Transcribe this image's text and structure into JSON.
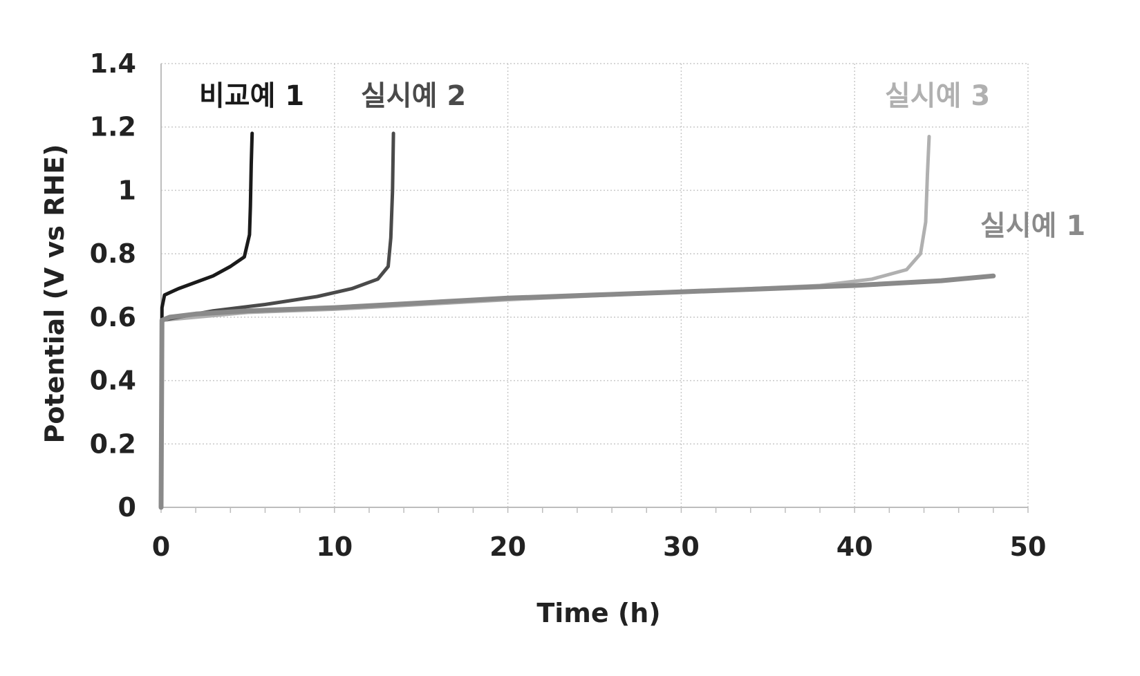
{
  "chart_data": {
    "type": "line",
    "title": "",
    "xlabel": "Time (h)",
    "ylabel": "Potential (V vs RHE)",
    "xlim": [
      0,
      50
    ],
    "ylim": [
      0,
      1.4
    ],
    "xticks": [
      0,
      10,
      20,
      30,
      40,
      50
    ],
    "yticks": [
      0,
      0.2,
      0.4,
      0.6,
      0.8,
      1.0,
      1.2,
      1.4
    ],
    "xtick_labels": [
      "0",
      "10",
      "20",
      "30",
      "40",
      "50"
    ],
    "ytick_labels": [
      "0",
      "0.2",
      "0.4",
      "0.6",
      "0.8",
      "1",
      "1.2",
      "1.4"
    ],
    "grid": true,
    "legend": "none",
    "series": [
      {
        "name": "실시예 1",
        "color": "#8a8a8a",
        "x": [
          0,
          0.05,
          0.5,
          2,
          5,
          10,
          15,
          20,
          25,
          30,
          35,
          40,
          45,
          48
        ],
        "y": [
          0.0,
          0.59,
          0.6,
          0.61,
          0.62,
          0.63,
          0.645,
          0.66,
          0.67,
          0.68,
          0.69,
          0.7,
          0.715,
          0.73
        ]
      },
      {
        "name": "비교예 1",
        "color": "#1a1a1a",
        "x": [
          0,
          0.05,
          0.2,
          1,
          2,
          3,
          4,
          4.8,
          5.1,
          5.15,
          5.2,
          5.25
        ],
        "y": [
          0.0,
          0.63,
          0.67,
          0.69,
          0.71,
          0.73,
          0.76,
          0.79,
          0.86,
          0.95,
          1.08,
          1.18
        ]
      },
      {
        "name": "실시예 2",
        "color": "#4a4a4a",
        "x": [
          0,
          0.05,
          1,
          3,
          6,
          9,
          11,
          12.5,
          13.1,
          13.25,
          13.35,
          13.4
        ],
        "y": [
          0.0,
          0.59,
          0.6,
          0.62,
          0.64,
          0.665,
          0.69,
          0.72,
          0.76,
          0.85,
          1.0,
          1.18
        ]
      },
      {
        "name": "실시예 3",
        "color": "#b0b0b0",
        "x": [
          0,
          0.05,
          5,
          10,
          20,
          30,
          38,
          41,
          43,
          43.8,
          44.1,
          44.2,
          44.3
        ],
        "y": [
          0.0,
          0.59,
          0.615,
          0.625,
          0.655,
          0.68,
          0.7,
          0.72,
          0.75,
          0.8,
          0.9,
          1.05,
          1.17
        ]
      }
    ]
  },
  "labels": {
    "comp1": "비교예 1",
    "ex2": "실시예 2",
    "ex3": "실시예 3",
    "ex1": "실시예 1"
  }
}
